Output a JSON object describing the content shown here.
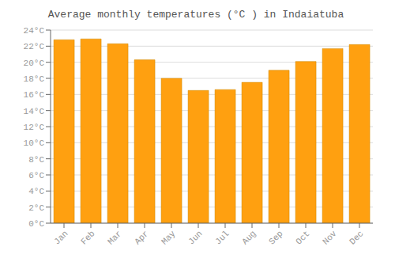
{
  "chart_data": {
    "type": "bar",
    "title": "Average monthly temperatures (°C ) in Indaiatuba",
    "categories": [
      "Jan",
      "Feb",
      "Mar",
      "Apr",
      "May",
      "Jun",
      "Jul",
      "Aug",
      "Sep",
      "Oct",
      "Nov",
      "Dec"
    ],
    "values": [
      22.8,
      22.9,
      22.3,
      20.3,
      18.0,
      16.5,
      16.6,
      17.5,
      19.0,
      20.1,
      21.7,
      22.2
    ],
    "color": "#FFA010",
    "ylim": [
      0,
      24
    ],
    "yticks": [
      {
        "value": 0,
        "label": "0°C"
      },
      {
        "value": 2,
        "label": "2°C"
      },
      {
        "value": 4,
        "label": "4°C"
      },
      {
        "value": 6,
        "label": "6°C"
      },
      {
        "value": 8,
        "label": "8°C"
      },
      {
        "value": 10,
        "label": "10°C"
      },
      {
        "value": 12,
        "label": "12°C"
      },
      {
        "value": 14,
        "label": "14°C"
      },
      {
        "value": 16,
        "label": "16°C"
      },
      {
        "value": 18,
        "label": "18°C"
      },
      {
        "value": 20,
        "label": "20°C"
      },
      {
        "value": 22,
        "label": "22°C"
      },
      {
        "value": 24,
        "label": "24°C"
      }
    ],
    "grid": true
  }
}
